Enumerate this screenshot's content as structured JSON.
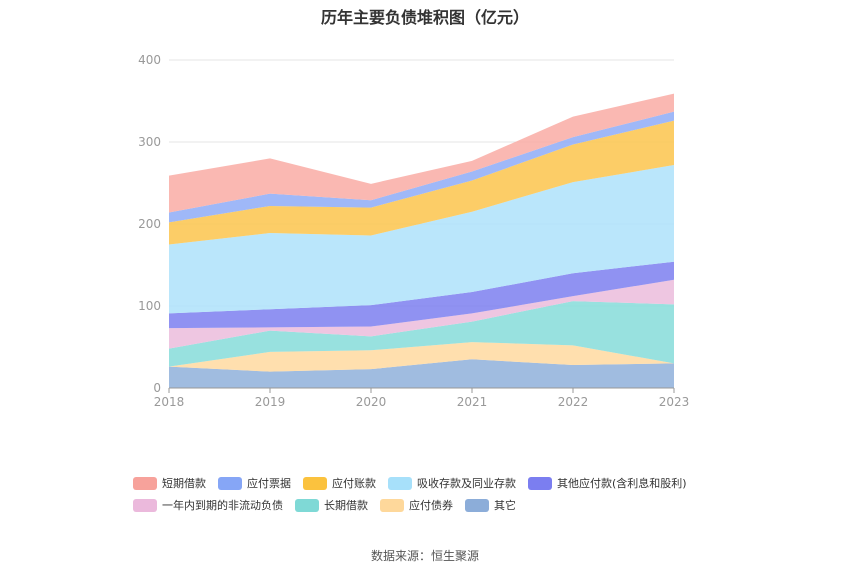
{
  "chart_data": {
    "type": "area",
    "stacked": true,
    "title": "历年主要负债堆积图（亿元）",
    "source": "数据来源：恒生聚源",
    "x": [
      "2018",
      "2019",
      "2020",
      "2021",
      "2022",
      "2023"
    ],
    "ylim": [
      0,
      400
    ],
    "yticks": [
      "0",
      "100",
      "200",
      "300",
      "400"
    ],
    "grid": true,
    "legend_position": "bottom",
    "series": [
      {
        "name": "其它",
        "color": "#8fb0da",
        "values": [
          26,
          20,
          23,
          35,
          28,
          30
        ]
      },
      {
        "name": "应付债券",
        "color": "#ffd9a0",
        "values": [
          0,
          24,
          23,
          21,
          24,
          0
        ]
      },
      {
        "name": "长期借款",
        "color": "#86dcd9",
        "values": [
          22,
          26,
          17,
          25,
          54,
          72
        ]
      },
      {
        "name": "一年内到期的非流动负债",
        "color": "#ebbcdc",
        "values": [
          25,
          4,
          12,
          10,
          6,
          30
        ]
      },
      {
        "name": "其他应付款(含利息和股利)",
        "color": "#7d7ff0",
        "values": [
          18,
          22,
          26,
          26,
          28,
          22
        ]
      },
      {
        "name": "吸收存款及同业存款",
        "color": "#aee2fa",
        "values": [
          84,
          93,
          85,
          98,
          111,
          118
        ]
      },
      {
        "name": "应付账款",
        "color": "#fcc44c",
        "values": [
          27,
          33,
          34,
          38,
          46,
          54
        ]
      },
      {
        "name": "应付票据",
        "color": "#8eacf7",
        "values": [
          12,
          15,
          9,
          11,
          9,
          11
        ]
      },
      {
        "name": "短期借款",
        "color": "#f9aca5",
        "values": [
          45,
          43,
          20,
          13,
          25,
          22
        ]
      }
    ],
    "legend_rows": [
      [
        {
          "name": "短期借款",
          "color": "#f7a29b"
        },
        {
          "name": "应付票据",
          "color": "#86a6f6"
        },
        {
          "name": "应付账款",
          "color": "#fbc23e"
        },
        {
          "name": "吸收存款及同业存款",
          "color": "#a7e0fa"
        },
        {
          "name": "其他应付款(含利息和股利)",
          "color": "#7b7ef0"
        }
      ],
      [
        {
          "name": "一年内到期的非流动负债",
          "color": "#ebb9dc"
        },
        {
          "name": "长期借款",
          "color": "#7fd9d6"
        },
        {
          "name": "应付债券",
          "color": "#fed89b"
        },
        {
          "name": "其它",
          "color": "#8cadd9"
        }
      ]
    ]
  }
}
